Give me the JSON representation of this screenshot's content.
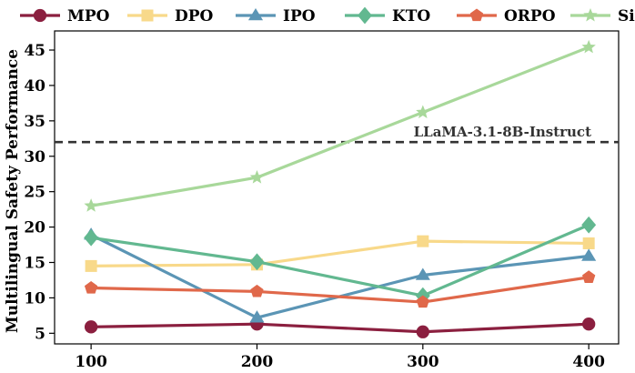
{
  "chart_data": {
    "type": "line",
    "title": "",
    "xlabel": "",
    "ylabel": "Multilingual Safety Performance",
    "x": [
      100,
      200,
      300,
      400
    ],
    "x_tick_labels": [
      "100",
      "200",
      "300",
      "400"
    ],
    "y_tick_values": [
      5,
      10,
      15,
      20,
      25,
      30,
      35,
      40,
      45
    ],
    "y_tick_labels": [
      "5",
      "10",
      "15",
      "20",
      "25",
      "30",
      "35",
      "40",
      "45"
    ],
    "xlim": [
      78,
      418
    ],
    "ylim": [
      3.5,
      47.7
    ],
    "legend_position": "top",
    "series": [
      {
        "name": "MPO",
        "color": "#8b1f3f",
        "marker": "circle",
        "values": [
          5.9,
          6.3,
          5.2,
          6.3
        ]
      },
      {
        "name": "DPO",
        "color": "#f8d98a",
        "marker": "square",
        "values": [
          14.5,
          14.7,
          18.0,
          17.7
        ]
      },
      {
        "name": "IPO",
        "color": "#5b95b5",
        "marker": "triangle-up",
        "values": [
          18.9,
          7.2,
          13.2,
          15.9
        ]
      },
      {
        "name": "KTO",
        "color": "#62b890",
        "marker": "diamond",
        "values": [
          18.5,
          15.1,
          10.3,
          20.3
        ]
      },
      {
        "name": "ORPO",
        "color": "#e0684a",
        "marker": "pentagon",
        "values": [
          11.4,
          10.9,
          9.4,
          12.9
        ]
      },
      {
        "name": "SimPO",
        "color": "#a8d89a",
        "marker": "star",
        "values": [
          23.0,
          27.0,
          36.2,
          45.4
        ]
      }
    ],
    "reference_line": {
      "label": "LLaMA-3.1-8B-Instruct",
      "value": 32.0,
      "color": "#333333",
      "style": "dashed"
    }
  }
}
